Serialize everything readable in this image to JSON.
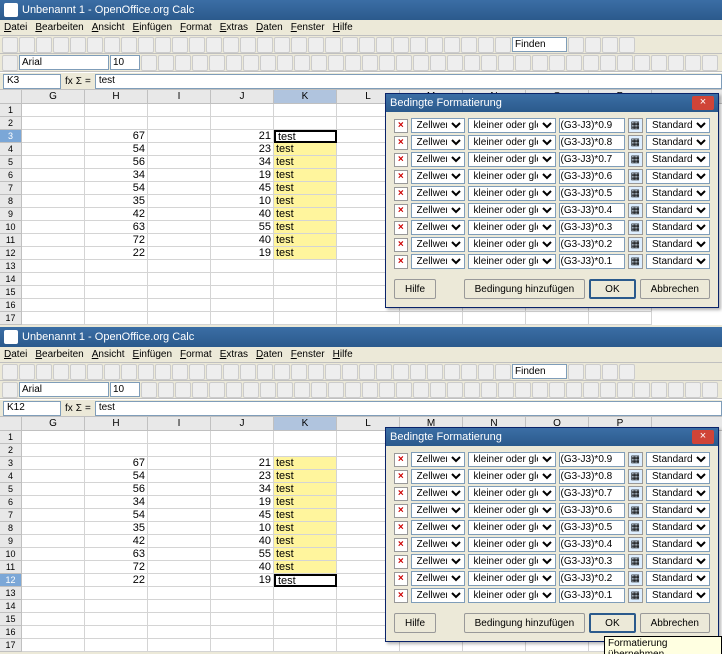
{
  "window_title": "Unbenannt 1 - OpenOffice.org Calc",
  "menu": [
    "Datei",
    "Bearbeiten",
    "Ansicht",
    "Einfügen",
    "Format",
    "Extras",
    "Daten",
    "Fenster",
    "Hilfe"
  ],
  "font_name": "Arial",
  "font_size": "10",
  "find_label": "Finden",
  "columns": [
    "G",
    "H",
    "I",
    "J",
    "K",
    "L",
    "M",
    "N",
    "O",
    "P"
  ],
  "col_H": [
    "67",
    "54",
    "56",
    "34",
    "54",
    "35",
    "42",
    "63",
    "72",
    "22"
  ],
  "col_J": [
    "21",
    "23",
    "34",
    "19",
    "45",
    "10",
    "40",
    "55",
    "40",
    "19"
  ],
  "col_K_val": "test",
  "dialog": {
    "title": "Bedingte Formatierung",
    "condition_label": "Zellwert ist",
    "operator": "kleiner oder gleich",
    "formulas": [
      "(G3-J3)*0.9",
      "(G3-J3)*0.8",
      "(G3-J3)*0.7",
      "(G3-J3)*0.6",
      "(G3-J3)*0.5",
      "(G3-J3)*0.4",
      "(G3-J3)*0.3",
      "(G3-J3)*0.2",
      "(G3-J3)*0.1"
    ],
    "style": "Standard",
    "btn_help": "Hilfe",
    "btn_add": "Bedingung hinzufügen",
    "btn_ok": "OK",
    "btn_cancel": "Abbrechen"
  },
  "inst1": {
    "cellref": "K3",
    "formula": "test",
    "active_row": 3
  },
  "inst2": {
    "cellref": "K12",
    "formula": "test",
    "active_row": 12,
    "tooltip": "Formatierung übernehmen"
  }
}
